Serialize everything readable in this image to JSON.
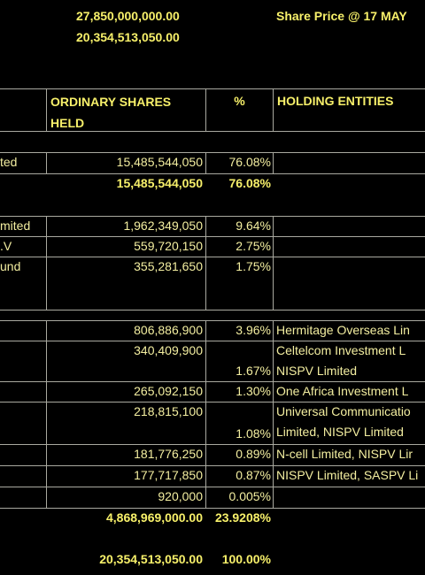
{
  "header": {
    "total_authorized": "27,850,000,000.00",
    "total_issued": "20,354,513,050.00",
    "share_price_label": "Share Price @ 17 MAY"
  },
  "table": {
    "columns": [
      "ORDINARY SHARES HELD",
      "%",
      "HOLDING ENTITIES"
    ],
    "rows": [
      {
        "name": "ted",
        "shares": "15,485,544,050",
        "percent": "76.08%"
      },
      {
        "shares": "15,485,544,050",
        "percent": "76.08%"
      },
      {
        "name": "mited",
        "shares": "1,962,349,050",
        "percent": "9.64%"
      },
      {
        "name": ".V",
        "shares": "559,720,150",
        "percent": "2.75%"
      },
      {
        "name": "und",
        "shares": "355,281,650",
        "percent": "1.75%"
      },
      {
        "shares": "806,886,900",
        "percent": "3.96%",
        "entity": [
          "Hermitage Overseas Lin"
        ]
      },
      {
        "shares": "340,409,900",
        "percent": "1.67%",
        "entity": [
          "Celtelcom Investment L",
          "NISPV Limited"
        ]
      },
      {
        "shares": "265,092,150",
        "percent": "1.30%",
        "entity": [
          "One Africa Investment L"
        ]
      },
      {
        "shares": "218,815,100",
        "percent": "1.08%",
        "entity": [
          "Universal Communicatio",
          "Limited, NISPV Limited"
        ]
      },
      {
        "shares": "181,776,250",
        "percent": "0.89%",
        "entity": [
          "N-cell Limited, NISPV Lir"
        ]
      },
      {
        "shares": "177,717,850",
        "percent": "0.87%",
        "entity": [
          "NISPV Limited, SASPV Li"
        ]
      },
      {
        "shares": "920,000",
        "percent": "0.005%"
      },
      {
        "shares": "4,868,969,000.00",
        "percent": "23.9208%"
      },
      {
        "shares": "20,354,513,050.00",
        "percent": "100.00%"
      }
    ]
  }
}
